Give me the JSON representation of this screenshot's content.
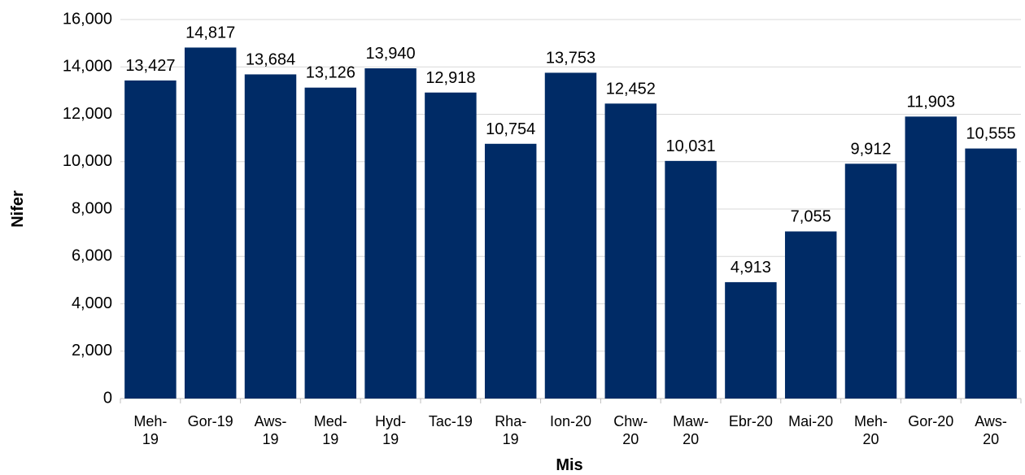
{
  "chart_data": {
    "type": "bar",
    "x_label": "Mis",
    "y_label": "Nifer",
    "categories": [
      "Meh-19",
      "Gor-19",
      "Aws-19",
      "Med-19",
      "Hyd-19",
      "Tac-19",
      "Rha-19",
      "Ion-20",
      "Chw-20",
      "Maw-20",
      "Ebr-20",
      "Mai-20",
      "Meh-20",
      "Gor-20",
      "Aws-20"
    ],
    "values": [
      13427,
      14817,
      13684,
      13126,
      13940,
      12918,
      10754,
      13753,
      12452,
      10031,
      4913,
      7055,
      9912,
      11903,
      10555
    ],
    "value_labels": [
      "13,427",
      "14,817",
      "13,684",
      "13,126",
      "13,940",
      "12,918",
      "10,754",
      "13,753",
      "12,452",
      "10,031",
      "4,913",
      "7,055",
      "9,912",
      "11,903",
      "10,555"
    ],
    "color": "#002b66",
    "ylim": [
      0,
      16000
    ],
    "yticks": [
      0,
      {
        "value": 2000,
        "label": "2,000"
      },
      {
        "value": 4000,
        "label": "4,000"
      },
      {
        "value": 6000,
        "label": "6,000"
      },
      {
        "value": 8000,
        "label": "8,000"
      },
      {
        "value": 10000,
        "label": "10,000"
      },
      {
        "value": 12000,
        "label": "12,000"
      },
      {
        "value": 14000,
        "label": "14,000"
      },
      {
        "value": 16000,
        "label": "16,000"
      }
    ],
    "grid": true
  }
}
